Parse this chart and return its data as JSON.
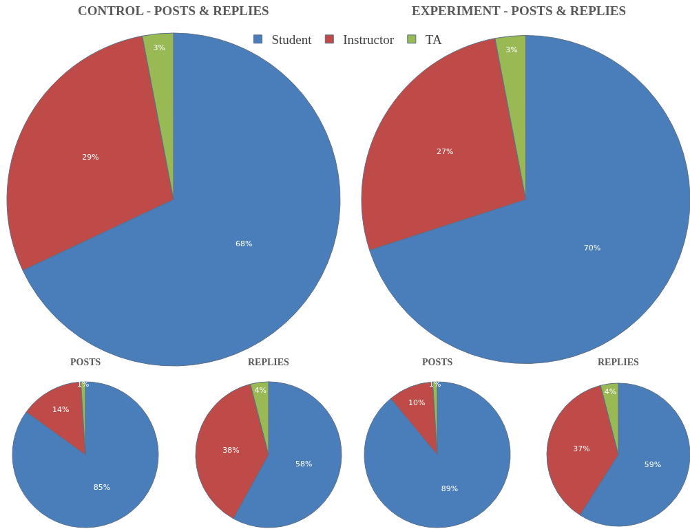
{
  "chart_data": [
    {
      "type": "pie",
      "title": "CONTROL - POSTS & REPLIES",
      "categories": [
        "Student",
        "Instructor",
        "TA"
      ],
      "values": [
        68,
        29,
        3
      ],
      "value_labels": [
        "68%",
        "29%",
        "3%"
      ],
      "colors": [
        "#4a7ebb",
        "#be4b48",
        "#98b954"
      ],
      "legend": "top"
    },
    {
      "type": "pie",
      "title": "EXPERIMENT - POSTS & REPLIES",
      "categories": [
        null,
        null,
        null
      ],
      "values": [
        70,
        27,
        3
      ],
      "value_labels": [
        "70%",
        "27%",
        "3%"
      ],
      "colors": [
        "#4a7ebb",
        "#be4b48",
        "#98b954"
      ]
    },
    {
      "type": "pie",
      "title": "POSTS",
      "categories": [
        null,
        null,
        null
      ],
      "values": [
        85,
        14,
        1
      ],
      "value_labels": [
        "85%",
        "14%",
        "1%"
      ],
      "colors": [
        "#4a7ebb",
        "#be4b48",
        "#98b954"
      ]
    },
    {
      "type": "pie",
      "title": "REPLIES",
      "categories": [
        null,
        null,
        null
      ],
      "values": [
        58,
        38,
        4
      ],
      "value_labels": [
        "58%",
        "38%",
        "4%"
      ],
      "colors": [
        "#4a7ebb",
        "#be4b48",
        "#98b954"
      ]
    },
    {
      "type": "pie",
      "title": "POSTS",
      "categories": [
        null,
        null,
        null
      ],
      "values": [
        89,
        10,
        1
      ],
      "value_labels": [
        "89%",
        "10%",
        "1%"
      ],
      "colors": [
        "#4a7ebb",
        "#be4b48",
        "#98b954"
      ]
    },
    {
      "type": "pie",
      "title": "REPLIES",
      "categories": [
        null,
        null,
        null
      ],
      "values": [
        59,
        37,
        4
      ],
      "value_labels": [
        "59%",
        "37%",
        "4%"
      ],
      "colors": [
        "#4a7ebb",
        "#be4b48",
        "#98b954"
      ]
    }
  ]
}
